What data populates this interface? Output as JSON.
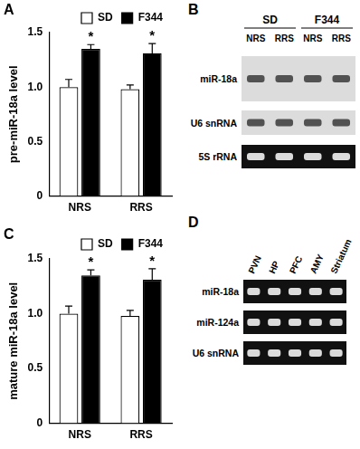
{
  "chart_data": [
    {
      "panel": "A",
      "type": "bar",
      "y_label": "pre-miR-18a level",
      "categories": [
        "NRS",
        "RRS"
      ],
      "series": [
        {
          "name": "SD",
          "color": "#ffffff",
          "values": [
            1.0,
            0.98
          ],
          "errors": [
            0.07,
            0.04
          ]
        },
        {
          "name": "F344",
          "color": "#000000",
          "values": [
            1.35,
            1.31
          ],
          "errors": [
            0.04,
            0.09
          ]
        }
      ],
      "ylim": [
        0,
        1.5
      ],
      "yticks": [
        0,
        0.5,
        {
          "value": 1,
          "label": "1.0"
        },
        1.5
      ],
      "grid": false,
      "legend": "top right",
      "annotations": [
        {
          "text": "*",
          "category": "NRS",
          "series": "F344"
        },
        {
          "text": "*",
          "category": "RRS",
          "series": "F344"
        }
      ]
    },
    {
      "panel": "C",
      "type": "bar",
      "y_label": "mature miR-18a level",
      "categories": [
        "NRS",
        "RRS"
      ],
      "series": [
        {
          "name": "SD",
          "color": "#ffffff",
          "values": [
            1.0,
            0.98
          ],
          "errors": [
            0.07,
            0.05
          ]
        },
        {
          "name": "F344",
          "color": "#000000",
          "values": [
            1.35,
            1.31
          ],
          "errors": [
            0.05,
            0.1
          ]
        }
      ],
      "ylim": [
        0,
        1.5
      ],
      "yticks": [
        0,
        0.5,
        {
          "value": 1,
          "label": "1.0"
        },
        1.5
      ],
      "grid": false,
      "legend": "top right",
      "annotations": [
        {
          "text": "*",
          "category": "NRS",
          "series": "F344"
        },
        {
          "text": "*",
          "category": "RRS",
          "series": "F344"
        }
      ]
    }
  ],
  "gels": [
    {
      "panel": "B",
      "groups": [
        {
          "label": "SD",
          "lanes": [
            "NRS",
            "RRS"
          ]
        },
        {
          "label": "F344",
          "lanes": [
            "NRS",
            "RRS"
          ]
        }
      ],
      "rows": [
        {
          "label": "miR-18a",
          "style": "dark_bands"
        },
        {
          "label": "U6 snRNA",
          "style": "dark_bands"
        },
        {
          "label": "5S rRNA",
          "style": "bright_bands"
        }
      ]
    },
    {
      "panel": "D",
      "lanes": [
        "PVN",
        "HP",
        "PFC",
        "AMY",
        "Striatum"
      ],
      "rows": [
        {
          "label": "miR-18a",
          "style": "bright_bands"
        },
        {
          "label": "miR-124a",
          "style": "bright_bands"
        },
        {
          "label": "U6 snRNA",
          "style": "bright_bands"
        }
      ]
    }
  ]
}
